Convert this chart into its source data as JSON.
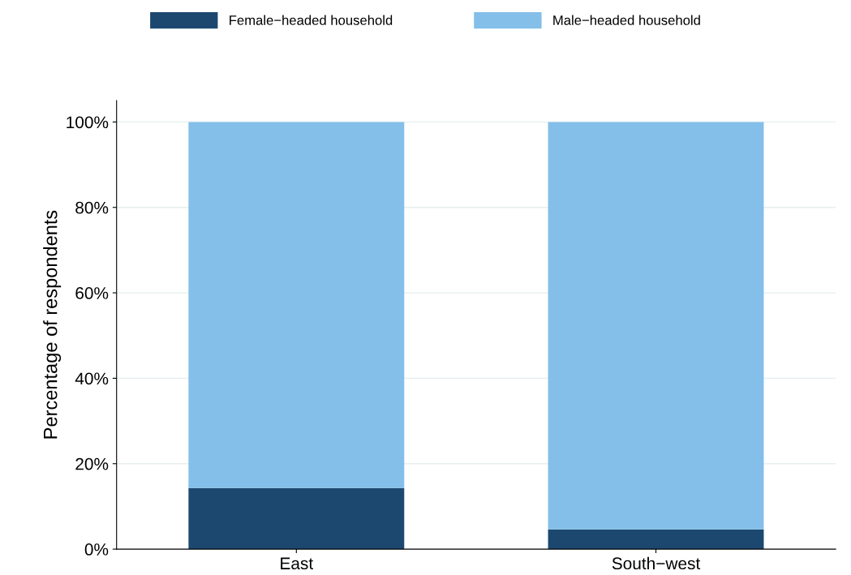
{
  "chart_data": {
    "type": "bar",
    "stacked": true,
    "categories": [
      "East",
      "South−west"
    ],
    "series": [
      {
        "name": "Female−headed household",
        "color": "#1c4870",
        "values": [
          14.3,
          4.6
        ]
      },
      {
        "name": "Male−headed household",
        "color": "#83bfe9",
        "values": [
          85.7,
          95.4
        ]
      }
    ],
    "ylabel": "Percentage of respondents",
    "ylim": [
      0,
      105
    ],
    "yticks": [
      {
        "value": 0,
        "label": "0%"
      },
      {
        "value": 20,
        "label": "20%"
      },
      {
        "value": 40,
        "label": "40%"
      },
      {
        "value": 60,
        "label": "60%"
      },
      {
        "value": 80,
        "label": "80%"
      },
      {
        "value": 100,
        "label": "100%"
      }
    ],
    "grid": "y",
    "legend": "top"
  }
}
